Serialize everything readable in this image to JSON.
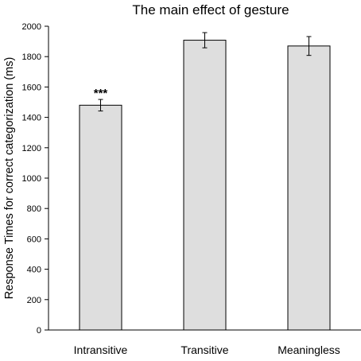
{
  "chart_data": {
    "type": "bar",
    "title": "The main effect of gesture",
    "xlabel": "",
    "ylabel": "Response Times for correct categorization (ms)",
    "categories": [
      "Intransitive",
      "Transitive",
      "Meaningless"
    ],
    "values": [
      1480,
      1908,
      1870
    ],
    "error": [
      38,
      50,
      62
    ],
    "annotations": [
      "***",
      "",
      ""
    ],
    "ylim": [
      0,
      2000
    ],
    "yticks": [
      0,
      200,
      400,
      600,
      800,
      1000,
      1200,
      1400,
      1600,
      1800,
      2000
    ],
    "grid": false,
    "legend": "none",
    "colors": {
      "bar_fill": "#dedede",
      "bar_stroke": "#000000",
      "axis": "#000000",
      "error_bar": "#000000"
    }
  }
}
